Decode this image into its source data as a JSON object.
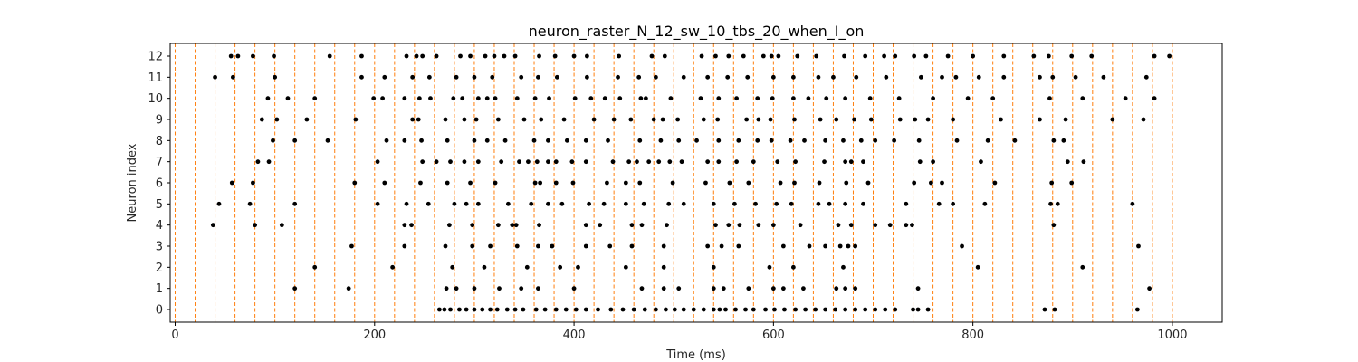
{
  "chart_data": {
    "type": "scatter",
    "title": "neuron_raster_N_12_sw_10_tbs_20_when_I_on",
    "xlabel": "Time (ms)",
    "ylabel": "Neuron index",
    "xlim": [
      -5,
      1050
    ],
    "ylim": [
      -0.6,
      12.6
    ],
    "x_ticks": [
      0,
      200,
      400,
      600,
      800,
      1000
    ],
    "y_ticks": [
      0,
      1,
      2,
      3,
      4,
      5,
      6,
      7,
      8,
      9,
      10,
      11,
      12
    ],
    "grid": false,
    "marker_color": "#000000",
    "vline_color": "#ff7f0e",
    "vlines": [
      0,
      20,
      40,
      60,
      80,
      100,
      120,
      140,
      160,
      180,
      200,
      220,
      240,
      260,
      280,
      300,
      320,
      340,
      360,
      380,
      400,
      420,
      440,
      460,
      480,
      500,
      520,
      540,
      560,
      580,
      600,
      620,
      640,
      660,
      680,
      700,
      720,
      740,
      760,
      780,
      800,
      820,
      840,
      860,
      880,
      900,
      920,
      940,
      960,
      980,
      1000
    ],
    "spikes": [
      {
        "neuron": 0,
        "times": [
          265,
          270,
          276,
          285,
          292,
          300,
          308,
          316,
          323,
          333,
          341,
          349,
          362,
          371,
          382,
          392,
          402,
          412,
          424,
          437,
          449,
          460,
          471,
          482,
          492,
          501,
          510,
          520,
          530,
          540,
          546,
          552,
          562,
          572,
          580,
          592,
          601,
          611,
          622,
          632,
          642,
          652,
          662,
          672,
          682,
          692,
          702,
          712,
          722,
          740,
          745,
          755,
          872,
          882,
          965
        ]
      },
      {
        "neuron": 1,
        "times": [
          120,
          174,
          272,
          282,
          300,
          325,
          347,
          364,
          400,
          468,
          490,
          505,
          540,
          550,
          575,
          600,
          610,
          630,
          663,
          672,
          682,
          745,
          977
        ]
      },
      {
        "neuron": 2,
        "times": [
          140,
          218,
          278,
          310,
          353,
          386,
          404,
          452,
          490,
          540,
          596,
          620,
          670,
          805,
          910
        ]
      },
      {
        "neuron": 3,
        "times": [
          177,
          230,
          271,
          298,
          316,
          343,
          364,
          378,
          412,
          436,
          458,
          490,
          534,
          548,
          565,
          610,
          636,
          652,
          667,
          675,
          682,
          789,
          966
        ]
      },
      {
        "neuron": 4,
        "times": [
          38,
          80,
          107,
          230,
          237,
          275,
          298,
          324,
          338,
          342,
          365,
          412,
          426,
          458,
          468,
          493,
          542,
          555,
          566,
          585,
          600,
          627,
          665,
          678,
          702,
          717,
          733,
          739,
          881
        ]
      },
      {
        "neuron": 5,
        "times": [
          44,
          75,
          120,
          203,
          232,
          254,
          280,
          292,
          304,
          334,
          357,
          374,
          388,
          415,
          430,
          452,
          470,
          495,
          510,
          540,
          561,
          582,
          603,
          618,
          645,
          656,
          672,
          690,
          733,
          780,
          766,
          812,
          878,
          885,
          960
        ]
      },
      {
        "neuron": 6,
        "times": [
          57,
          78,
          180,
          210,
          246,
          273,
          296,
          321,
          361,
          366,
          382,
          399,
          433,
          452,
          466,
          499,
          532,
          556,
          575,
          607,
          621,
          646,
          673,
          695,
          741,
          758,
          769,
          822,
          879,
          899
        ]
      },
      {
        "neuron": 7,
        "times": [
          83,
          94,
          203,
          248,
          262,
          276,
          290,
          304,
          327,
          345,
          354,
          363,
          374,
          382,
          398,
          412,
          439,
          455,
          463,
          475,
          485,
          496,
          508,
          534,
          545,
          563,
          580,
          604,
          622,
          651,
          672,
          678,
          690,
          747,
          760,
          808,
          895,
          911
        ]
      },
      {
        "neuron": 8,
        "times": [
          98,
          120,
          153,
          212,
          230,
          247,
          273,
          300,
          313,
          331,
          360,
          374,
          393,
          412,
          434,
          466,
          487,
          505,
          523,
          545,
          565,
          584,
          598,
          617,
          631,
          652,
          670,
          688,
          702,
          721,
          746,
          784,
          815,
          842,
          881,
          891
        ]
      },
      {
        "neuron": 9,
        "times": [
          87,
          102,
          132,
          181,
          238,
          244,
          271,
          290,
          302,
          324,
          350,
          367,
          390,
          420,
          440,
          457,
          480,
          489,
          504,
          530,
          544,
          573,
          585,
          597,
          621,
          647,
          663,
          681,
          698,
          727,
          742,
          755,
          780,
          828,
          867,
          893,
          940,
          971
        ]
      },
      {
        "neuron": 10,
        "times": [
          93,
          113,
          140,
          199,
          208,
          230,
          245,
          256,
          279,
          288,
          304,
          313,
          321,
          343,
          361,
          375,
          401,
          417,
          431,
          446,
          467,
          472,
          497,
          527,
          545,
          563,
          584,
          599,
          620,
          635,
          653,
          672,
          697,
          726,
          760,
          795,
          820,
          877,
          910,
          953,
          982
        ]
      },
      {
        "neuron": 11,
        "times": [
          40,
          58,
          100,
          187,
          210,
          238,
          255,
          282,
          300,
          318,
          347,
          364,
          383,
          413,
          444,
          465,
          482,
          510,
          534,
          554,
          574,
          600,
          620,
          645,
          660,
          683,
          713,
          748,
          769,
          783,
          806,
          831,
          867,
          880,
          903,
          931,
          974
        ]
      },
      {
        "neuron": 12,
        "times": [
          56,
          63,
          78,
          99,
          155,
          187,
          232,
          242,
          248,
          262,
          286,
          296,
          311,
          320,
          330,
          341,
          365,
          381,
          400,
          413,
          445,
          478,
          491,
          528,
          542,
          555,
          570,
          590,
          598,
          605,
          624,
          643,
          671,
          692,
          711,
          722,
          741,
          753,
          775,
          800,
          831,
          861,
          876,
          899,
          919,
          982,
          997
        ]
      }
    ]
  }
}
